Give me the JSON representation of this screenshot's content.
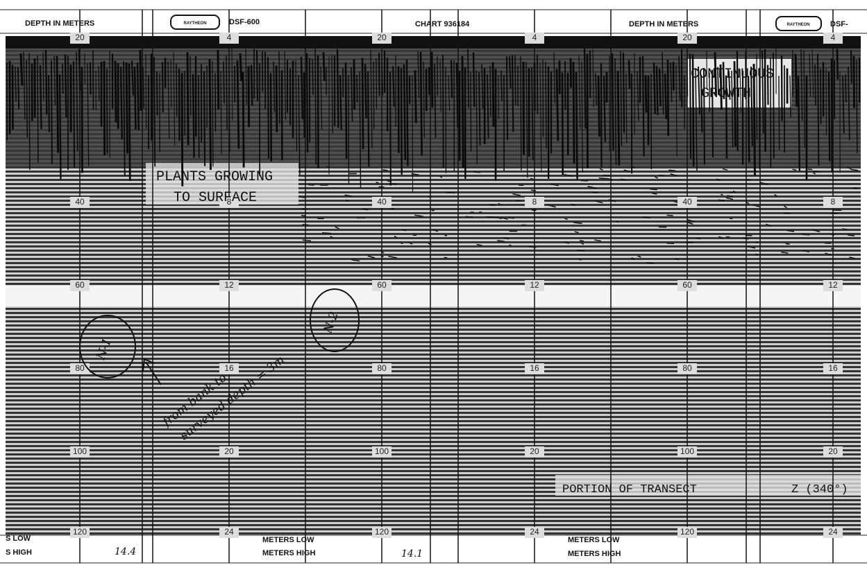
{
  "header": {
    "left_label": "DEPTH IN METERS",
    "logo_1": "RAYTHEON",
    "model_1": "DSF-600",
    "chart_number": "CHART 936184",
    "right_label": "DEPTH IN METERS",
    "logo_2": "RAYTHEON",
    "model_2": "DSF-"
  },
  "scales": [
    {
      "labels": [
        "20",
        "40",
        "60",
        "80",
        "100",
        "120"
      ]
    },
    {
      "labels": [
        "4",
        "8",
        "12",
        "16",
        "20",
        "24"
      ]
    },
    {
      "labels": [
        "20",
        "40",
        "60",
        "80",
        "100",
        "120"
      ]
    },
    {
      "labels": [
        "4",
        "8",
        "12",
        "16",
        "20",
        "24"
      ]
    },
    {
      "labels": [
        "20",
        "40",
        "60",
        "80",
        "100",
        "120"
      ]
    },
    {
      "labels": [
        "4",
        "8",
        "12",
        "16",
        "20",
        "24"
      ]
    }
  ],
  "annotations": {
    "continuous_1": "CONTINUOUS",
    "continuous_2": "GROWTH",
    "plants_1": "PLANTS GROWING",
    "plants_2": "TO SURFACE",
    "portion": "PORTION OF TRANSECT",
    "bearing": "Z (340°)",
    "circle_1": "N-1",
    "circle_2": "N-2",
    "note_1": "from bank to",
    "note_2": "surveyed depth = 3m"
  },
  "footer": {
    "left_low": "S LOW",
    "left_high": "S HIGH",
    "reading_1": "14.4",
    "mid_low": "METERS LOW",
    "mid_high": "METERS HIGH",
    "reading_2": "14.1",
    "right_low": "METERS LOW",
    "right_high": "METERS HIGH"
  }
}
